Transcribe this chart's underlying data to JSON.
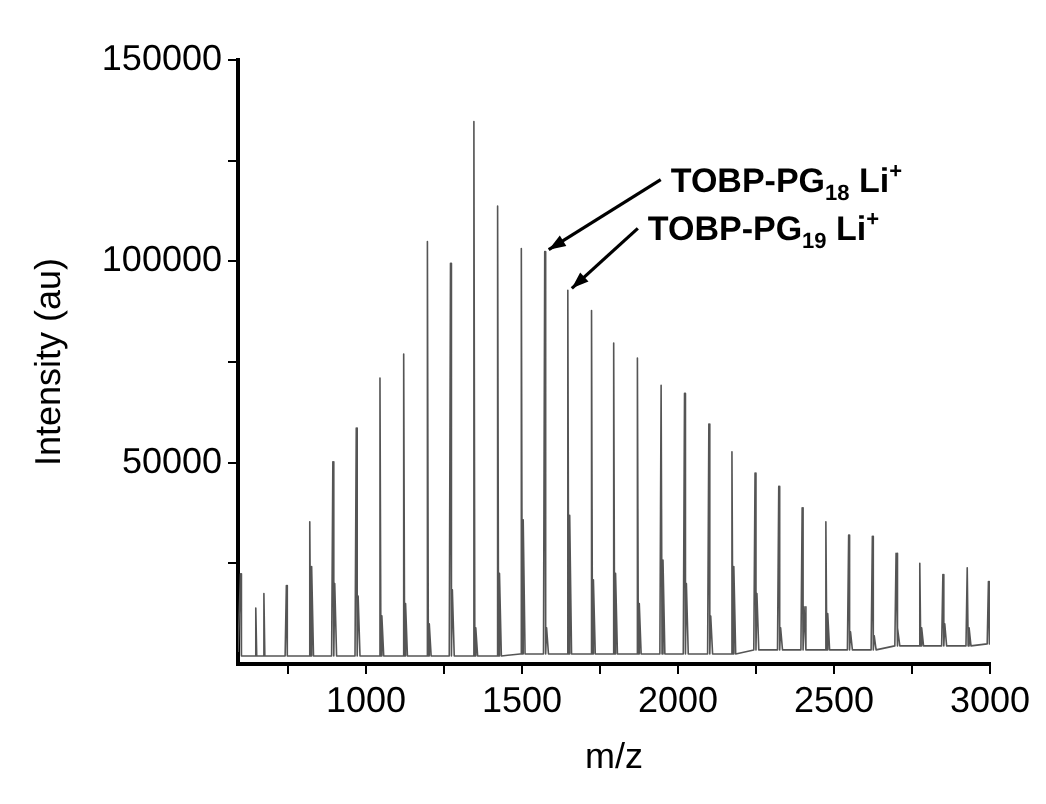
{
  "chart_data": {
    "type": "line",
    "xlabel": "m/z",
    "ylabel": "Intensity (au)",
    "xlim": [
      590,
      3000
    ],
    "xticks": [
      {
        "value": 750,
        "label": null
      },
      1000,
      {
        "value": 1250,
        "label": null
      },
      1500,
      {
        "value": 1750,
        "label": null
      },
      2000,
      {
        "value": 2250,
        "label": null
      },
      2500,
      {
        "value": 2750,
        "label": null
      },
      3000
    ],
    "ylim": [
      0,
      150000
    ],
    "yticks": [
      {
        "value": 25000,
        "label": null
      },
      50000,
      {
        "value": 75000,
        "label": null
      },
      100000,
      {
        "value": 125000,
        "label": null
      },
      150000
    ],
    "grid": false,
    "legend": false,
    "marker": "none",
    "line_style": "solid",
    "annotations": [
      {
        "text": "TOBP-PG$_{18}$ Li$^{+}$",
        "x": 1573,
        "y": 102400
      },
      {
        "text": "TOBP-PG$_{19}$ Li$^{+}$",
        "x": 1647,
        "y": 92800
      }
    ],
    "series": [
      {
        "color": "#555555",
        "x": [
          590,
          598,
          601,
          643,
          647,
          650,
          669,
          673,
          676,
          741,
          745,
          748,
          816,
          820,
          823,
          826,
          832,
          890,
          894,
          897,
          900,
          906,
          965,
          969,
          972,
          975,
          981,
          1041,
          1045,
          1048,
          1051,
          1057,
          1117,
          1121,
          1124,
          1127,
          1133,
          1193,
          1197,
          1200,
          1203,
          1209,
          1267,
          1271,
          1274,
          1277,
          1283,
          1342,
          1346,
          1349,
          1352,
          1358,
          1418,
          1422,
          1425,
          1428,
          1434,
          1494,
          1498,
          1501,
          1504,
          1510,
          1569,
          1573,
          1576,
          1579,
          1585,
          1643,
          1647,
          1650,
          1653,
          1659,
          1719,
          1723,
          1726,
          1729,
          1735,
          1790,
          1794,
          1797,
          1800,
          1806,
          1866,
          1870,
          1873,
          1876,
          1882,
          1942,
          1946,
          1949,
          1952,
          1958,
          2017,
          2021,
          2024,
          2027,
          2033,
          2095,
          2099,
          2102,
          2105,
          2111,
          2169,
          2173,
          2176,
          2179,
          2185,
          2243,
          2247,
          2250,
          2253,
          2259,
          2319,
          2323,
          2326,
          2329,
          2335,
          2394,
          2398,
          2401,
          2404,
          2410,
          2470,
          2474,
          2477,
          2480,
          2486,
          2543,
          2547,
          2550,
          2553,
          2559,
          2619,
          2623,
          2626,
          2629,
          2635,
          2695,
          2699,
          2702,
          2705,
          2711,
          2771,
          2775,
          2778,
          2781,
          2787,
          2845,
          2849,
          2852,
          2855,
          2861,
          2923,
          2927,
          2930,
          2933,
          2939,
          2991,
          2995,
          2998
        ],
        "values": [
          3000,
          22400,
          2000,
          2000,
          13900,
          2000,
          2000,
          17500,
          2000,
          2000,
          19500,
          2000,
          2000,
          35300,
          2000,
          24200,
          2000,
          2000,
          50200,
          2000,
          20000,
          2000,
          2000,
          58600,
          2000,
          16900,
          2000,
          2000,
          71000,
          2000,
          12000,
          2000,
          2000,
          77000,
          2000,
          15000,
          2000,
          2000,
          104900,
          2000,
          10000,
          2000,
          2000,
          99500,
          2000,
          18400,
          2000,
          2000,
          134700,
          2000,
          9000,
          2000,
          2000,
          113700,
          2000,
          22500,
          2000,
          2500,
          103200,
          2500,
          35800,
          2500,
          2500,
          102400,
          2500,
          9000,
          2500,
          2500,
          92800,
          2500,
          36900,
          2500,
          2500,
          87800,
          2500,
          20900,
          2500,
          2500,
          79700,
          2500,
          22500,
          2500,
          2500,
          76000,
          2500,
          15000,
          2500,
          2500,
          69200,
          2500,
          25800,
          2500,
          2500,
          67200,
          2500,
          20000,
          2500,
          2500,
          59600,
          2500,
          11900,
          2500,
          2500,
          52700,
          2500,
          24200,
          2500,
          3500,
          47400,
          3500,
          17500,
          3500,
          3500,
          44100,
          3500,
          9000,
          3500,
          3500,
          38800,
          3500,
          14200,
          3500,
          3500,
          35300,
          3500,
          12500,
          3500,
          3500,
          32000,
          3500,
          8000,
          3500,
          3500,
          31700,
          3500,
          7000,
          3500,
          4500,
          27500,
          4500,
          9000,
          4500,
          4500,
          25000,
          4500,
          9000,
          4500,
          4500,
          22200,
          4500,
          10000,
          4500,
          4500,
          23900,
          4500,
          9000,
          4500,
          5000,
          20500,
          5000
        ]
      }
    ]
  }
}
